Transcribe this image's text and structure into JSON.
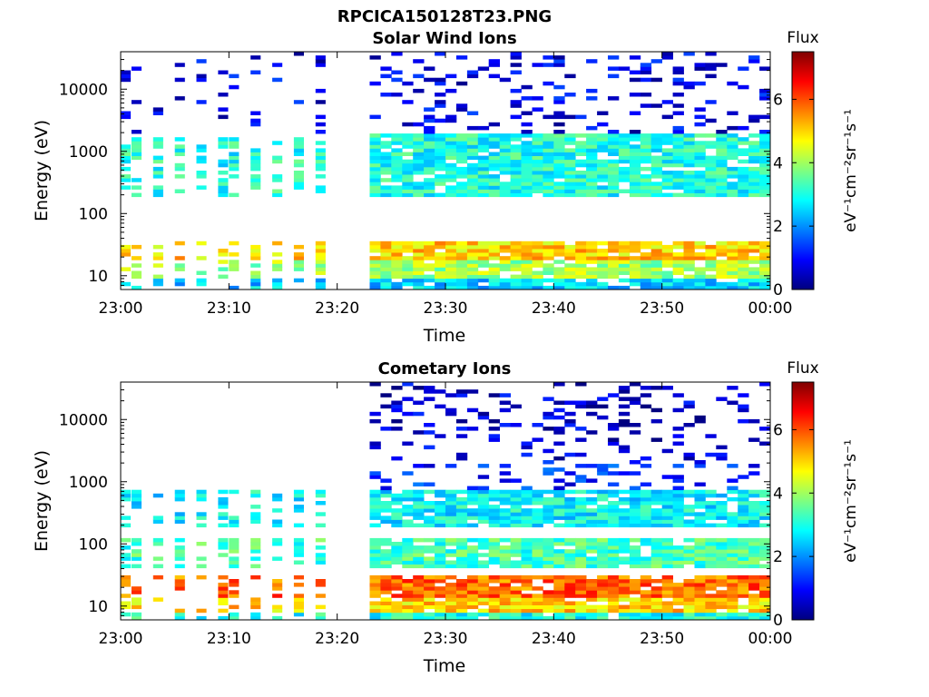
{
  "figure": {
    "title": "RPCICA150128T23.PNG",
    "colorbar_label": "Flux",
    "colorbar_units": "eV⁻¹cm⁻²sr⁻¹s⁻¹"
  },
  "colormap": {
    "name": "jet",
    "stops": [
      "#00007f",
      "#0000ff",
      "#007fff",
      "#00ffff",
      "#7fff7f",
      "#ffff00",
      "#ff7f00",
      "#ff0000",
      "#7f0000"
    ]
  },
  "chart_data": [
    {
      "type": "heatmap",
      "title": "Solar Wind Ions",
      "xlabel": "Time",
      "ylabel": "Energy (eV)",
      "yscale": "log",
      "x_ticks": [
        "23:00",
        "23:10",
        "23:20",
        "23:30",
        "23:40",
        "23:50",
        "00:00"
      ],
      "x_range_minutes": [
        0,
        60
      ],
      "y_ticks": [
        10,
        100,
        1000,
        10000
      ],
      "y_range": [
        6,
        40000
      ],
      "colorbar_ticks": [
        0,
        2,
        4,
        6
      ],
      "colorbar_range": [
        0,
        7.5
      ],
      "data_gap_minutes": [
        19,
        22.2
      ],
      "bands": [
        {
          "energy_range": [
            18,
            35
          ],
          "flux": 5.0,
          "period": "both"
        },
        {
          "energy_range": [
            9,
            18
          ],
          "flux": 4.0,
          "period": "both"
        },
        {
          "energy_range": [
            6,
            9
          ],
          "flux": 2.5,
          "period": "both"
        },
        {
          "energy_range": [
            180,
            1800
          ],
          "flux": 3.0,
          "period": "early"
        },
        {
          "energy_range": [
            180,
            2000
          ],
          "flux": 3.0,
          "period": "late"
        },
        {
          "energy_range": [
            2000,
            40000
          ],
          "flux": 0.8,
          "period": "both"
        }
      ]
    },
    {
      "type": "heatmap",
      "title": "Cometary Ions",
      "xlabel": "Time",
      "ylabel": "Energy (eV)",
      "yscale": "log",
      "x_ticks": [
        "23:00",
        "23:10",
        "23:20",
        "23:30",
        "23:40",
        "23:50",
        "00:00"
      ],
      "x_range_minutes": [
        0,
        60
      ],
      "y_ticks": [
        10,
        100,
        1000,
        10000
      ],
      "y_range": [
        6,
        40000
      ],
      "colorbar_ticks": [
        0,
        2,
        4,
        6
      ],
      "colorbar_range": [
        0,
        7.5
      ],
      "data_gap_minutes": [
        19,
        22.2
      ],
      "bands": [
        {
          "energy_range": [
            14,
            32
          ],
          "flux": 5.8,
          "period": "both"
        },
        {
          "energy_range": [
            8,
            14
          ],
          "flux": 5.0,
          "period": "both"
        },
        {
          "energy_range": [
            6,
            8
          ],
          "flux": 3.0,
          "period": "both"
        },
        {
          "energy_range": [
            40,
            120
          ],
          "flux": 3.3,
          "period": "both"
        },
        {
          "energy_range": [
            180,
            700
          ],
          "flux": 2.8,
          "period": "both"
        },
        {
          "energy_range": [
            700,
            2200
          ],
          "flux": 1.2,
          "period": "late"
        },
        {
          "energy_range": [
            2200,
            40000
          ],
          "flux": 0.6,
          "period": "late"
        }
      ]
    }
  ]
}
